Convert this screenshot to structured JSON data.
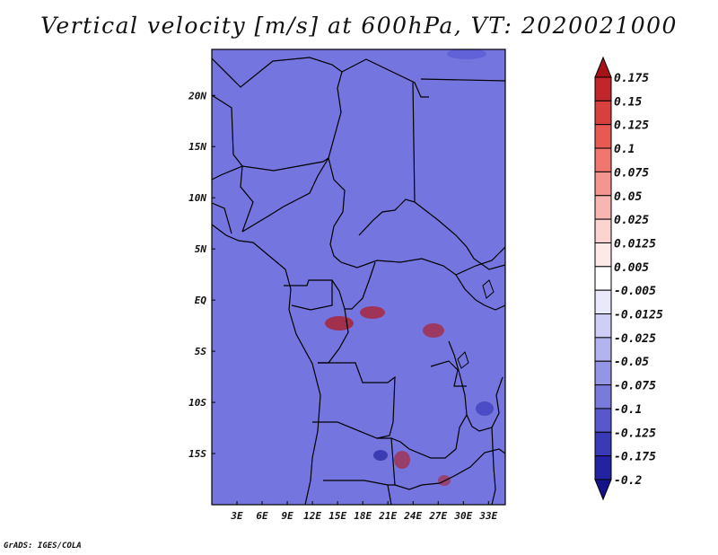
{
  "title": "Vertical velocity [m/s] at 600hPa, VT: 2020021000",
  "credit": "GrADS: IGES/COLA",
  "map": {
    "lon_labels": [
      "3E",
      "6E",
      "9E",
      "12E",
      "15E",
      "18E",
      "21E",
      "24E",
      "27E",
      "30E",
      "33E"
    ],
    "lat_labels": [
      "20N",
      "15N",
      "10N",
      "5N",
      "EQ",
      "5S",
      "10S",
      "15S"
    ],
    "lon_range": [
      0,
      35
    ],
    "lat_range": [
      -20,
      24.5
    ]
  },
  "colorbar": {
    "levels": [
      "0.175",
      "0.15",
      "0.125",
      "0.1",
      "0.075",
      "0.05",
      "0.025",
      "0.0125",
      "0.005",
      "-0.005",
      "-0.0125",
      "-0.025",
      "-0.05",
      "-0.075",
      "-0.1",
      "-0.125",
      "-0.175",
      "-0.2"
    ],
    "colors": [
      "#a61218",
      "#c0262c",
      "#d8403e",
      "#e75a54",
      "#ef776f",
      "#f59590",
      "#f8b6b2",
      "#fbd4d2",
      "#fde9e8",
      "#ffffff",
      "#e9e9fb",
      "#cfcff5",
      "#b3b3ee",
      "#9595e5",
      "#7a7adb",
      "#5858cc",
      "#3a3ab8",
      "#2222a3",
      "#14148a"
    ]
  }
}
